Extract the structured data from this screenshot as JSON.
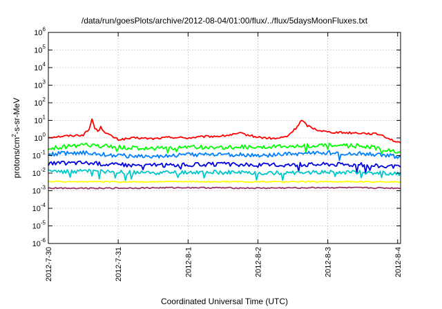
{
  "chart_data": {
    "type": "line",
    "title": "/data/run/goesPlots/archive/2012-08-04/01:00/flux/../flux/5daysMoonFluxes.txt",
    "xlabel": "Coordinated Universal Time (UTC)",
    "ylabel": {
      "base": "protons/cm",
      "sup": "2",
      "rest": "-s-sr-MeV"
    },
    "y_scale": "log",
    "ylim": [
      1e-06,
      1000000.0
    ],
    "xlim": [
      "2012-07-30",
      "2012-08-04 01:00"
    ],
    "grid": true,
    "x_ticks": [
      {
        "label": "2012-7-30",
        "day": 0
      },
      {
        "label": "2012-7-31",
        "day": 1
      },
      {
        "label": "2012-8-1",
        "day": 2
      },
      {
        "label": "2012-8-2",
        "day": 3
      },
      {
        "label": "2012-8-3",
        "day": 4
      },
      {
        "label": "2012-8-4",
        "day": 5
      }
    ],
    "y_ticks": [
      {
        "base": "10",
        "exp": "-6",
        "value": 1e-06
      },
      {
        "base": "10",
        "exp": "-5",
        "value": 1e-05
      },
      {
        "base": "10",
        "exp": "-4",
        "value": 0.0001
      },
      {
        "base": "10",
        "exp": "-3",
        "value": 0.001
      },
      {
        "base": "10",
        "exp": "-2",
        "value": 0.01
      },
      {
        "base": "10",
        "exp": "-1",
        "value": 0.1
      },
      {
        "base": "10",
        "exp": "0",
        "value": 1
      },
      {
        "base": "10",
        "exp": "1",
        "value": 10
      },
      {
        "base": "10",
        "exp": "2",
        "value": 100
      },
      {
        "base": "10",
        "exp": "3",
        "value": 1000
      },
      {
        "base": "10",
        "exp": "4",
        "value": 10000
      },
      {
        "base": "10",
        "exp": "5",
        "value": 100000
      },
      {
        "base": "10",
        "exp": "6",
        "value": 1000000
      }
    ],
    "series": [
      {
        "color": "#ff0000",
        "x": [
          "2012-07-30 00:00",
          "2012-07-30 06:00",
          "2012-07-30 12:00",
          "2012-07-30 14:00",
          "2012-07-30 15:00",
          "2012-07-30 16:00",
          "2012-07-30 17:00",
          "2012-07-30 18:00",
          "2012-07-30 20:00",
          "2012-07-30 22:00",
          "2012-07-31 00:00",
          "2012-07-31 06:00",
          "2012-07-31 12:00",
          "2012-07-31 18:00",
          "2012-08-01 00:00",
          "2012-08-01 06:00",
          "2012-08-01 12:00",
          "2012-08-01 18:00",
          "2012-08-02 00:00",
          "2012-08-02 06:00",
          "2012-08-02 10:00",
          "2012-08-02 13:00",
          "2012-08-02 14:00",
          "2012-08-02 15:00",
          "2012-08-02 17:00",
          "2012-08-02 20:00",
          "2012-08-03 00:00",
          "2012-08-03 06:00",
          "2012-08-03 12:00",
          "2012-08-03 18:00",
          "2012-08-04 00:00",
          "2012-08-04 01:00"
        ],
        "values": [
          1.1,
          1.3,
          1.5,
          3,
          12,
          3.5,
          2.5,
          4,
          1.8,
          1.2,
          0.8,
          1.0,
          0.9,
          1.1,
          1.0,
          1.2,
          1.3,
          1.8,
          1.1,
          0.9,
          1.2,
          3.5,
          6,
          10,
          5,
          3,
          2.2,
          2.0,
          1.9,
          1.6,
          0.55,
          0.5
        ]
      },
      {
        "color": "#00ff00",
        "x": [
          "2012-07-30 00:00",
          "2012-07-30 12:00",
          "2012-07-31 00:00",
          "2012-07-31 12:00",
          "2012-08-01 00:00",
          "2012-08-01 12:00",
          "2012-08-02 00:00",
          "2012-08-02 12:00",
          "2012-08-03 00:00",
          "2012-08-03 12:00",
          "2012-08-04 00:00",
          "2012-08-04 01:00"
        ],
        "values": [
          0.25,
          0.4,
          0.3,
          0.25,
          0.3,
          0.28,
          0.32,
          0.35,
          0.4,
          0.35,
          0.18,
          0.17
        ]
      },
      {
        "color": "#0080ff",
        "x": [
          "2012-07-30 00:00",
          "2012-07-30 12:00",
          "2012-07-31 00:00",
          "2012-07-31 12:00",
          "2012-08-01 00:00",
          "2012-08-01 12:00",
          "2012-08-02 00:00",
          "2012-08-02 12:00",
          "2012-08-03 00:00",
          "2012-08-03 12:00",
          "2012-08-04 00:00",
          "2012-08-04 01:00"
        ],
        "values": [
          0.12,
          0.15,
          0.1,
          0.09,
          0.11,
          0.12,
          0.1,
          0.12,
          0.15,
          0.13,
          0.09,
          0.08
        ]
      },
      {
        "color": "#0000e0",
        "x": [
          "2012-07-30 00:00",
          "2012-07-30 12:00",
          "2012-07-31 00:00",
          "2012-07-31 12:00",
          "2012-08-01 00:00",
          "2012-08-01 12:00",
          "2012-08-02 00:00",
          "2012-08-02 12:00",
          "2012-08-03 00:00",
          "2012-08-03 12:00",
          "2012-08-04 00:00",
          "2012-08-04 01:00"
        ],
        "values": [
          0.035,
          0.04,
          0.03,
          0.028,
          0.03,
          0.032,
          0.028,
          0.03,
          0.033,
          0.03,
          0.022,
          0.02
        ]
      },
      {
        "color": "#00c8c8",
        "x": [
          "2012-07-30 00:00",
          "2012-07-30 12:00",
          "2012-07-31 00:00",
          "2012-07-31 12:00",
          "2012-08-01 00:00",
          "2012-08-01 12:00",
          "2012-08-02 00:00",
          "2012-08-02 12:00",
          "2012-08-03 00:00",
          "2012-08-03 12:00",
          "2012-08-04 00:00",
          "2012-08-04 01:00"
        ],
        "values": [
          0.012,
          0.013,
          0.011,
          0.01,
          0.011,
          0.011,
          0.01,
          0.011,
          0.012,
          0.011,
          0.009,
          0.009
        ]
      },
      {
        "color": "#ffff00",
        "x": [
          "2012-07-30 00:00",
          "2012-07-31 00:00",
          "2012-08-01 00:00",
          "2012-08-02 00:00",
          "2012-08-03 00:00",
          "2012-08-04 01:00"
        ],
        "values": [
          0.0033,
          0.0032,
          0.0033,
          0.0032,
          0.0033,
          0.0032
        ]
      },
      {
        "color": "#993366",
        "x": [
          "2012-07-30 00:00",
          "2012-07-31 00:00",
          "2012-08-01 00:00",
          "2012-08-02 00:00",
          "2012-08-03 00:00",
          "2012-08-04 01:00"
        ],
        "values": [
          0.0014,
          0.0014,
          0.0015,
          0.0014,
          0.0015,
          0.0014
        ]
      }
    ]
  }
}
